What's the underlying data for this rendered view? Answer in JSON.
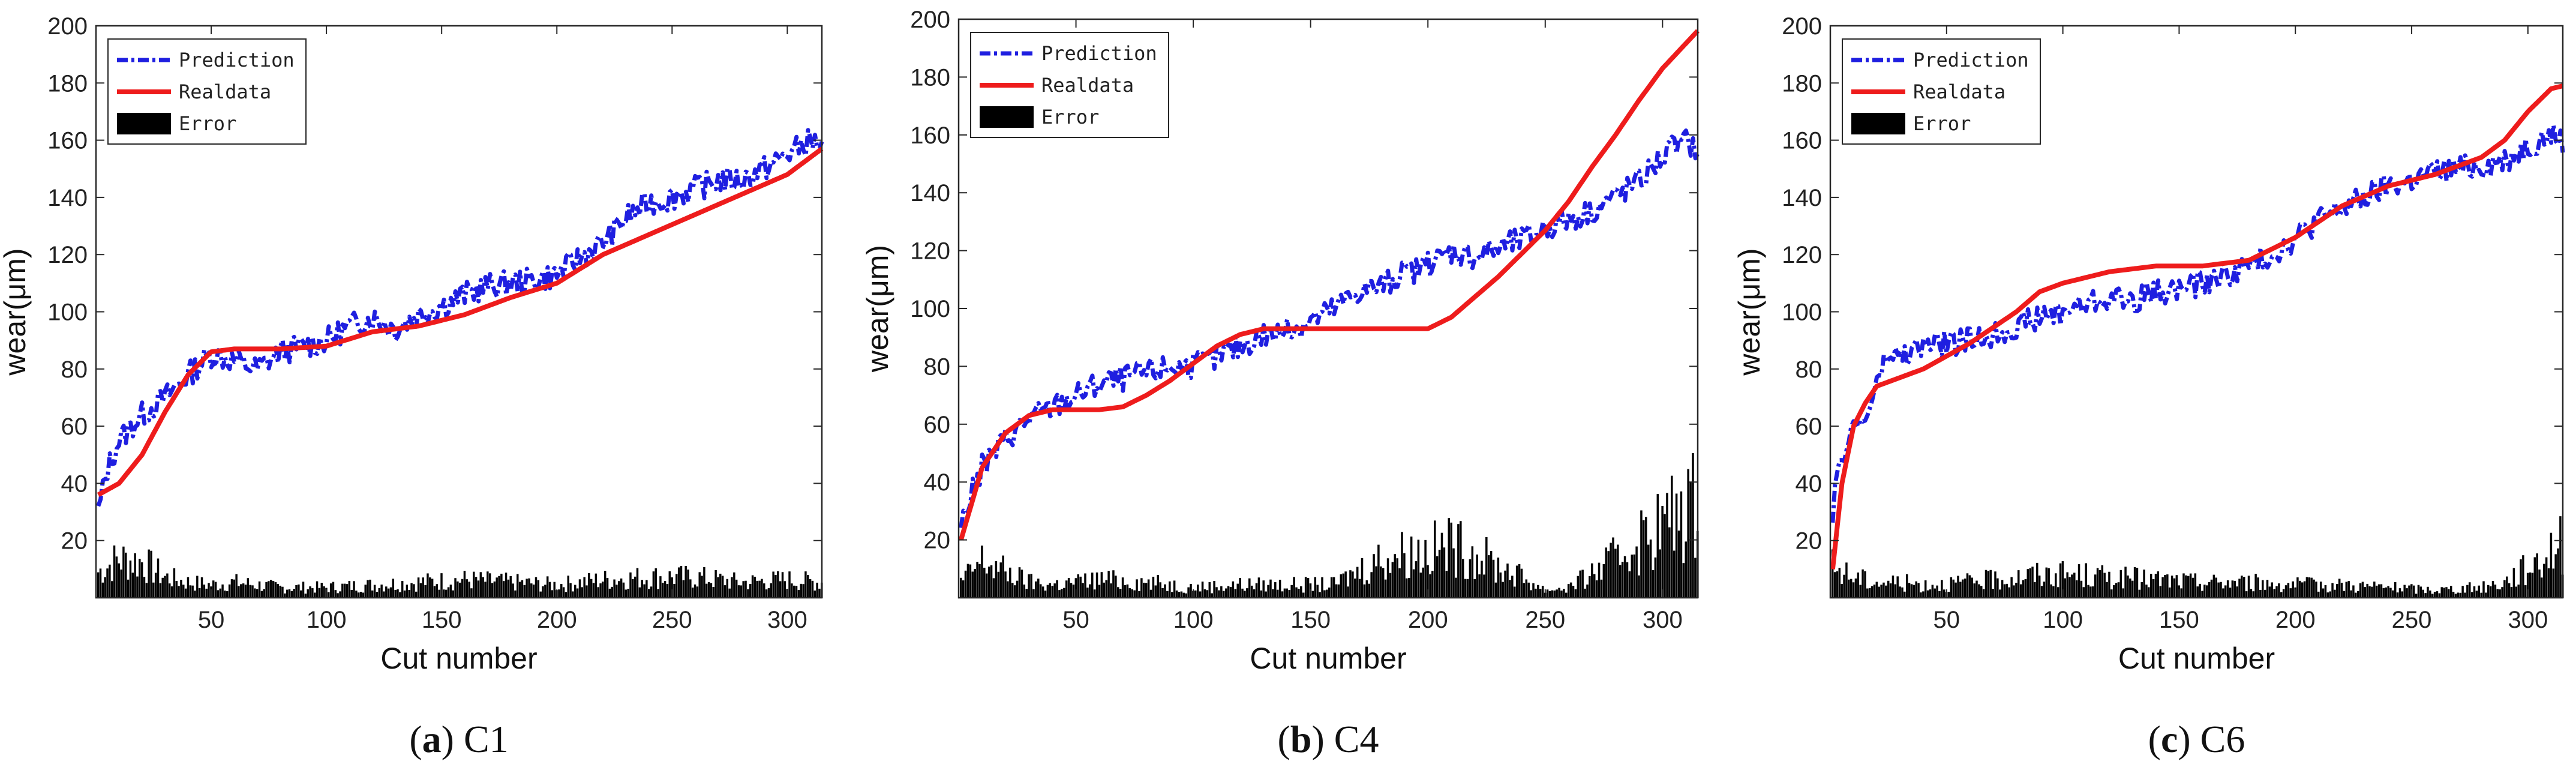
{
  "figure": {
    "colors": {
      "prediction": "#1f1fe0",
      "realdata": "#ee1c1c",
      "error": "#000000",
      "axis": "#262626"
    }
  },
  "chart_data": [
    {
      "type": "line",
      "id": "C1",
      "caption": {
        "letter": "a",
        "name": "C1"
      },
      "xlabel": "Cut number",
      "ylabel": "wear(μm)",
      "xlim": [
        0,
        315
      ],
      "ylim": [
        0,
        200
      ],
      "xticks": [
        50,
        100,
        150,
        200,
        250,
        300
      ],
      "yticks": [
        20,
        40,
        60,
        80,
        100,
        120,
        140,
        160,
        180,
        200
      ],
      "legend": [
        "Prediction",
        "Realdata",
        "Error"
      ],
      "legend_position": "top-left",
      "series": [
        {
          "name": "Realdata",
          "x": [
            1,
            10,
            20,
            30,
            40,
            50,
            60,
            80,
            100,
            120,
            140,
            160,
            180,
            200,
            220,
            240,
            260,
            280,
            300,
            315
          ],
          "values": [
            36,
            40,
            50,
            65,
            78,
            86,
            87,
            87,
            88,
            93,
            95,
            99,
            105,
            110,
            120,
            127,
            134,
            141,
            148,
            157
          ]
        },
        {
          "name": "Prediction",
          "x": [
            1,
            5,
            10,
            20,
            30,
            40,
            50,
            60,
            70,
            80,
            90,
            100,
            110,
            120,
            130,
            140,
            150,
            160,
            170,
            180,
            190,
            200,
            210,
            220,
            230,
            240,
            250,
            260,
            270,
            280,
            290,
            300,
            310,
            315
          ],
          "values": [
            30,
            45,
            55,
            64,
            70,
            78,
            85,
            83,
            80,
            86,
            88,
            90,
            95,
            98,
            94,
            99,
            102,
            106,
            109,
            110,
            111,
            113,
            119,
            124,
            133,
            138,
            140,
            143,
            146,
            146,
            150,
            155,
            160,
            158
          ]
        },
        {
          "name": "Error",
          "x": [
            1,
            10,
            20,
            30,
            40,
            50,
            60,
            80,
            100,
            120,
            140,
            160,
            180,
            200,
            220,
            240,
            260,
            280,
            300,
            315
          ],
          "values": [
            10,
            15,
            14,
            8,
            6,
            5,
            6,
            4,
            4,
            5,
            6,
            7,
            6,
            5,
            7,
            8,
            8,
            6,
            7,
            6
          ]
        }
      ]
    },
    {
      "type": "line",
      "id": "C4",
      "caption": {
        "letter": "b",
        "name": "C4"
      },
      "xlabel": "Cut number",
      "ylabel": "wear(μm)",
      "xlim": [
        0,
        315
      ],
      "ylim": [
        0,
        200
      ],
      "xticks": [
        50,
        100,
        150,
        200,
        250,
        300
      ],
      "yticks": [
        20,
        40,
        60,
        80,
        100,
        120,
        140,
        160,
        180,
        200
      ],
      "legend": [
        "Prediction",
        "Realdata",
        "Error"
      ],
      "legend_position": "top-left",
      "series": [
        {
          "name": "Realdata",
          "x": [
            1,
            10,
            20,
            30,
            40,
            50,
            60,
            70,
            80,
            90,
            100,
            110,
            120,
            130,
            140,
            150,
            160,
            170,
            180,
            190,
            200,
            210,
            220,
            230,
            240,
            250,
            260,
            270,
            280,
            290,
            300,
            315
          ],
          "values": [
            20,
            45,
            57,
            63,
            65,
            65,
            65,
            66,
            70,
            75,
            81,
            87,
            91,
            93,
            93,
            93,
            93,
            93,
            93,
            93,
            93,
            97,
            104,
            111,
            119,
            127,
            137,
            149,
            160,
            172,
            183,
            196
          ]
        },
        {
          "name": "Prediction",
          "x": [
            1,
            5,
            10,
            20,
            30,
            40,
            50,
            60,
            70,
            80,
            90,
            100,
            110,
            120,
            130,
            140,
            150,
            160,
            170,
            180,
            190,
            200,
            210,
            220,
            230,
            240,
            250,
            260,
            270,
            280,
            290,
            300,
            310,
            315
          ],
          "values": [
            25,
            35,
            45,
            55,
            62,
            66,
            70,
            74,
            76,
            78,
            80,
            80,
            83,
            87,
            91,
            92,
            96,
            100,
            106,
            108,
            112,
            115,
            120,
            118,
            121,
            124,
            128,
            131,
            134,
            139,
            144,
            153,
            158,
            155
          ]
        },
        {
          "name": "Error",
          "x": [
            1,
            10,
            20,
            30,
            40,
            50,
            60,
            80,
            100,
            120,
            140,
            160,
            170,
            180,
            190,
            200,
            210,
            220,
            230,
            240,
            250,
            260,
            270,
            280,
            290,
            300,
            315
          ],
          "values": [
            6,
            14,
            10,
            6,
            5,
            6,
            7,
            6,
            4,
            5,
            5,
            5,
            10,
            15,
            17,
            18,
            20,
            17,
            12,
            8,
            3,
            4,
            9,
            15,
            22,
            28,
            37
          ]
        }
      ]
    },
    {
      "type": "line",
      "id": "C6",
      "caption": {
        "letter": "c",
        "name": "C6"
      },
      "xlabel": "Cut number",
      "ylabel": "wear(μm)",
      "xlim": [
        0,
        315
      ],
      "ylim": [
        0,
        200
      ],
      "xticks": [
        50,
        100,
        150,
        200,
        250,
        300
      ],
      "yticks": [
        20,
        40,
        60,
        80,
        100,
        120,
        140,
        160,
        180,
        200
      ],
      "legend": [
        "Prediction",
        "Realdata",
        "Error"
      ],
      "legend_position": "top-left",
      "series": [
        {
          "name": "Realdata",
          "x": [
            1,
            5,
            10,
            15,
            20,
            40,
            60,
            80,
            90,
            100,
            120,
            140,
            160,
            180,
            200,
            220,
            240,
            260,
            280,
            290,
            300,
            310,
            315
          ],
          "values": [
            10,
            40,
            60,
            68,
            74,
            80,
            89,
            100,
            107,
            110,
            114,
            116,
            116,
            118,
            126,
            137,
            144,
            148,
            154,
            160,
            170,
            178,
            179
          ]
        },
        {
          "name": "Prediction",
          "x": [
            1,
            5,
            10,
            15,
            20,
            25,
            30,
            40,
            50,
            60,
            70,
            80,
            90,
            100,
            110,
            120,
            130,
            140,
            150,
            160,
            170,
            180,
            190,
            200,
            210,
            220,
            230,
            240,
            250,
            260,
            270,
            280,
            290,
            300,
            310,
            315
          ],
          "values": [
            30,
            50,
            60,
            62,
            75,
            85,
            84,
            88,
            89,
            90,
            92,
            95,
            98,
            100,
            103,
            105,
            104,
            107,
            108,
            110,
            113,
            116,
            120,
            126,
            132,
            136,
            140,
            144,
            146,
            149,
            150,
            151,
            153,
            158,
            162,
            160
          ]
        },
        {
          "name": "Error",
          "x": [
            1,
            10,
            20,
            30,
            40,
            60,
            80,
            90,
            100,
            120,
            140,
            160,
            180,
            200,
            220,
            240,
            260,
            280,
            290,
            300,
            315
          ],
          "values": [
            12,
            8,
            6,
            6,
            5,
            6,
            8,
            9,
            9,
            8,
            7,
            6,
            6,
            5,
            5,
            4,
            3,
            4,
            6,
            12,
            22
          ]
        }
      ]
    }
  ]
}
